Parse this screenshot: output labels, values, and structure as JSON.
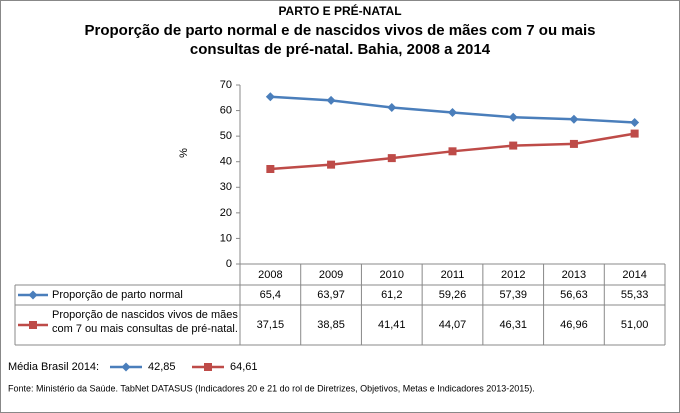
{
  "header": "PARTO E PRÉ-NATAL",
  "chart_data": {
    "type": "line",
    "title": [
      "Proporção de parto normal e de nascidos vivos de mães com 7 ou mais",
      "consultas de pré-natal. Bahia, 2008 a 2014"
    ],
    "y_label": "%",
    "categories": [
      "2008",
      "2009",
      "2010",
      "2011",
      "2012",
      "2013",
      "2014"
    ],
    "series": [
      {
        "name": "Proporção de parto normal",
        "color": "#4a7ebb",
        "marker": "diamond",
        "values": [
          65.4,
          63.97,
          61.2,
          59.26,
          57.39,
          56.63,
          55.33
        ],
        "value_labels": [
          "65,4",
          "63,97",
          "61,2",
          "59,26",
          "57,39",
          "56,63",
          "55,33"
        ]
      },
      {
        "name": "Proporção de nascidos vivos de mães com 7 ou mais consultas de pré-natal.",
        "color": "#be4b48",
        "marker": "square",
        "values": [
          37.15,
          38.85,
          41.41,
          44.07,
          46.31,
          46.96,
          51.0
        ],
        "value_labels": [
          "37,15",
          "38,85",
          "41,41",
          "44,07",
          "46,31",
          "46,96",
          "51,00"
        ]
      }
    ],
    "ylim": [
      0,
      70
    ],
    "yticks": [
      0,
      10,
      20,
      30,
      40,
      50,
      60,
      70
    ],
    "grid": false
  },
  "brazil_average": {
    "label": "Média Brasil 2014:",
    "items": [
      "42,85",
      "64,61"
    ]
  },
  "source": "Fonte: Ministério da Saúde. TabNet DATASUS (Indicadores 20 e 21 do rol de Diretrizes, Objetivos, Metas e Indicadores 2013-2015)."
}
